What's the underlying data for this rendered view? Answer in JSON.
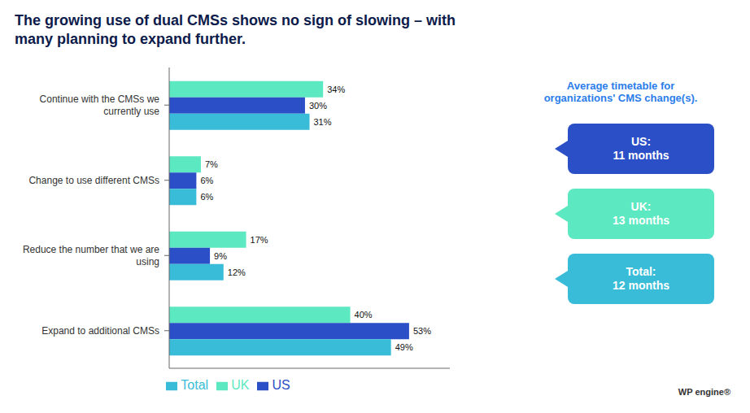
{
  "chart_data": {
    "type": "bar",
    "orientation": "horizontal",
    "title": "The growing use of dual CMSs shows no sign of slowing – with\nmany planning to expand further.",
    "categories": [
      "Continue with the CMSs we\ncurrently use",
      "Change to use different CMSs",
      "Reduce the number that we are\nusing",
      "Expand to additional CMSs"
    ],
    "series": [
      {
        "name": "UK",
        "color": "#5ce8c0",
        "values": [
          34,
          7,
          17,
          40
        ],
        "value_labels": [
          "34%",
          "7%",
          "17%",
          "40%"
        ]
      },
      {
        "name": "US",
        "color": "#2b4fc7",
        "values": [
          30,
          6,
          9,
          53
        ],
        "value_labels": [
          "30%",
          "6%",
          "9%",
          "53%"
        ]
      },
      {
        "name": "Total",
        "color": "#38bcd8",
        "values": [
          31,
          6,
          12,
          49
        ],
        "value_labels": [
          "31%",
          "6%",
          "12%",
          "49%"
        ]
      }
    ],
    "xlim": [
      0,
      62
    ],
    "data_labels": true,
    "tick_labels": "y",
    "legend": "bottom",
    "grid": false,
    "annotations": [
      {
        "text": "Average timetable for\norganizations' CMS change(s).",
        "color": "#2b7de9"
      },
      {
        "text": "US:\n11 months",
        "color": "#2b4fc7"
      },
      {
        "text": "UK:\n13 months",
        "color": "#5ce8c0"
      },
      {
        "text": "Total:\n12 months",
        "color": "#38bcd8"
      },
      {
        "text": "WP engine®",
        "color": "#333333"
      }
    ]
  }
}
